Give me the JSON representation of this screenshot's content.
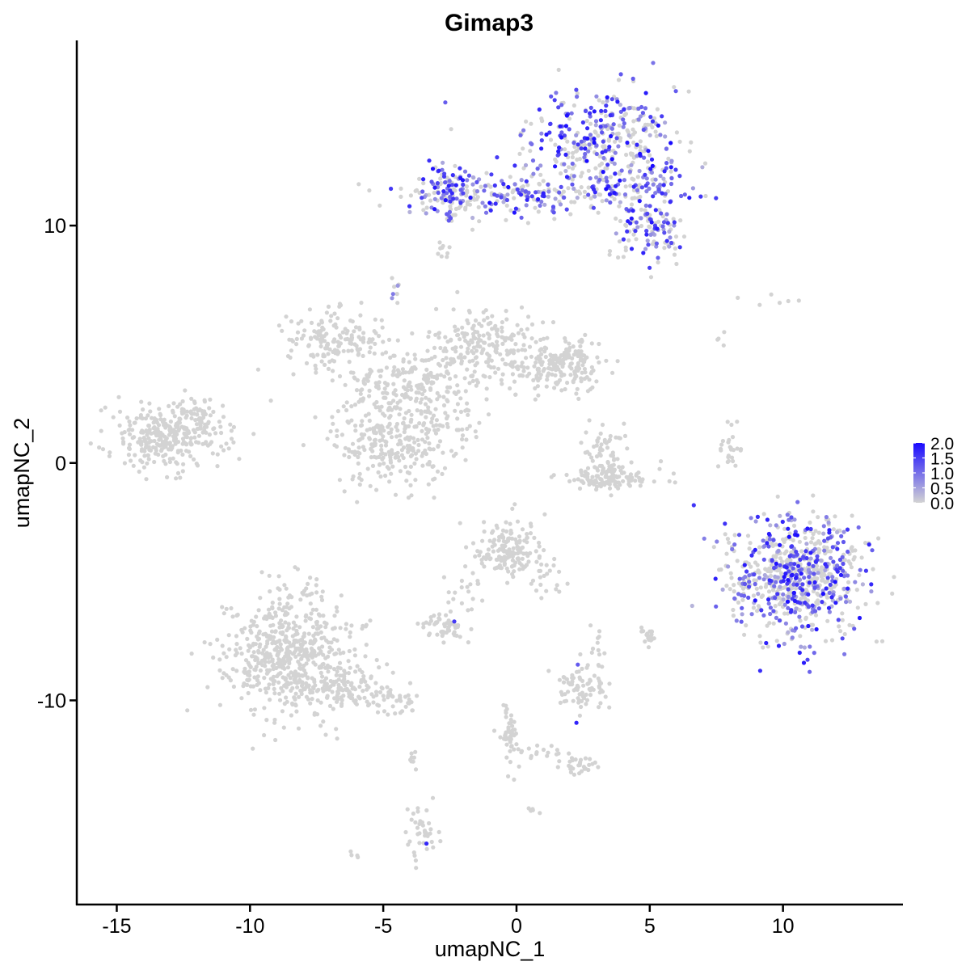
{
  "chart_data": {
    "type": "scatter",
    "title": "Gimap3",
    "xlabel": "umapNC_1",
    "ylabel": "umapNC_2",
    "xlim": [
      -16.5,
      14.5
    ],
    "ylim": [
      -18.6,
      17.8
    ],
    "x_ticks": [
      -15,
      -10,
      -5,
      0,
      5,
      10
    ],
    "y_ticks": [
      -10,
      0,
      10
    ],
    "x_tick_labels": [
      "-15",
      "-10",
      "-5",
      "0",
      "5",
      "10"
    ],
    "y_tick_labels": [
      "-10",
      "0",
      "10"
    ],
    "grid": false,
    "color_scale": {
      "low_color": "#d3d3d3",
      "high_color": "#1a0bff",
      "min": 0.0,
      "max": 2.0,
      "ticks": [
        2.0,
        1.5,
        1.0,
        0.5,
        0.0
      ],
      "tick_labels": [
        "2.0",
        "1.5",
        "1.0",
        "0.5",
        "0.0"
      ],
      "legend_position": "right"
    },
    "clusters": [
      {
        "cx": 3.2,
        "cy": 13.5,
        "sx": 1.4,
        "sy": 1.2,
        "n": 380,
        "expr": 0.55
      },
      {
        "cx": 0.5,
        "cy": 11.3,
        "sx": 2.2,
        "sy": 0.4,
        "n": 200,
        "expr": 0.5
      },
      {
        "cx": -2.3,
        "cy": 11.4,
        "sx": 0.7,
        "sy": 0.6,
        "n": 120,
        "expr": 0.6
      },
      {
        "cx": 5.0,
        "cy": 9.7,
        "sx": 0.7,
        "sy": 0.7,
        "n": 110,
        "expr": 0.55
      },
      {
        "cx": 5.2,
        "cy": 11.8,
        "sx": 0.6,
        "sy": 0.5,
        "n": 60,
        "expr": 0.65
      },
      {
        "cx": -2.8,
        "cy": 8.9,
        "sx": 0.15,
        "sy": 0.2,
        "n": 10,
        "expr": 0.0
      },
      {
        "cx": -4.5,
        "cy": 7.2,
        "sx": 0.15,
        "sy": 0.3,
        "n": 8,
        "expr": 0.1
      },
      {
        "cx": -6.8,
        "cy": 5.2,
        "sx": 0.9,
        "sy": 0.6,
        "n": 160,
        "expr": 0.0
      },
      {
        "cx": -4.0,
        "cy": 3.4,
        "sx": 1.2,
        "sy": 0.8,
        "n": 200,
        "expr": 0.0
      },
      {
        "cx": -4.7,
        "cy": 1.0,
        "sx": 1.1,
        "sy": 1.0,
        "n": 280,
        "expr": 0.0
      },
      {
        "cx": -1.2,
        "cy": 5.0,
        "sx": 0.9,
        "sy": 0.8,
        "n": 200,
        "expr": 0.0
      },
      {
        "cx": 1.3,
        "cy": 4.0,
        "sx": 0.9,
        "sy": 0.5,
        "n": 140,
        "expr": 0.0
      },
      {
        "cx": 2.3,
        "cy": 4.3,
        "sx": 0.5,
        "sy": 0.6,
        "n": 70,
        "expr": 0.0
      },
      {
        "cx": -2.3,
        "cy": 1.8,
        "sx": 0.6,
        "sy": 0.5,
        "n": 30,
        "expr": 0.0
      },
      {
        "cx": -13.2,
        "cy": 1.1,
        "sx": 1.1,
        "sy": 0.7,
        "n": 300,
        "expr": 0.0
      },
      {
        "cx": -11.8,
        "cy": 1.8,
        "sx": 0.4,
        "sy": 0.5,
        "n": 40,
        "expr": 0.0
      },
      {
        "cx": 3.5,
        "cy": -0.6,
        "sx": 1.0,
        "sy": 0.3,
        "n": 120,
        "expr": 0.0
      },
      {
        "cx": 3.2,
        "cy": 0.5,
        "sx": 0.4,
        "sy": 0.6,
        "n": 50,
        "expr": 0.0
      },
      {
        "cx": 8.1,
        "cy": 0.6,
        "sx": 0.2,
        "sy": 0.5,
        "n": 25,
        "expr": 0.05
      },
      {
        "cx": 10.6,
        "cy": -4.8,
        "sx": 1.2,
        "sy": 1.3,
        "n": 700,
        "expr": 0.45
      },
      {
        "cx": 8.6,
        "cy": -4.9,
        "sx": 0.2,
        "sy": 0.5,
        "n": 20,
        "expr": 0.55
      },
      {
        "cx": -0.4,
        "cy": -3.7,
        "sx": 0.6,
        "sy": 0.6,
        "n": 160,
        "expr": 0.0
      },
      {
        "cx": 1.1,
        "cy": -4.8,
        "sx": 0.3,
        "sy": 0.5,
        "n": 20,
        "expr": 0.0
      },
      {
        "cx": -1.9,
        "cy": -5.4,
        "sx": 0.4,
        "sy": 0.7,
        "n": 20,
        "expr": 0.0
      },
      {
        "cx": -2.7,
        "cy": -6.9,
        "sx": 0.4,
        "sy": 0.3,
        "n": 50,
        "expr": 0.02
      },
      {
        "cx": -8.5,
        "cy": -8.0,
        "sx": 1.2,
        "sy": 1.3,
        "n": 600,
        "expr": 0.0
      },
      {
        "cx": -6.4,
        "cy": -9.5,
        "sx": 0.8,
        "sy": 0.5,
        "n": 100,
        "expr": 0.0
      },
      {
        "cx": -4.6,
        "cy": -10.0,
        "sx": 0.5,
        "sy": 0.3,
        "n": 40,
        "expr": 0.0
      },
      {
        "cx": 2.4,
        "cy": -9.4,
        "sx": 0.5,
        "sy": 0.6,
        "n": 80,
        "expr": 0.02
      },
      {
        "cx": 3.1,
        "cy": -7.6,
        "sx": 0.2,
        "sy": 0.4,
        "n": 10,
        "expr": 0.0
      },
      {
        "cx": 5.0,
        "cy": -7.2,
        "sx": 0.2,
        "sy": 0.2,
        "n": 20,
        "expr": 0.0
      },
      {
        "cx": -0.3,
        "cy": -11.3,
        "sx": 0.2,
        "sy": 0.7,
        "n": 50,
        "expr": 0.0
      },
      {
        "cx": 2.3,
        "cy": -12.7,
        "sx": 0.3,
        "sy": 0.2,
        "n": 30,
        "expr": 0.0
      },
      {
        "cx": 0.9,
        "cy": -12.1,
        "sx": 0.5,
        "sy": 0.2,
        "n": 15,
        "expr": 0.0
      },
      {
        "cx": -3.5,
        "cy": -15.6,
        "sx": 0.3,
        "sy": 0.6,
        "n": 40,
        "expr": 0.02
      },
      {
        "cx": -3.9,
        "cy": -12.4,
        "sx": 0.1,
        "sy": 0.3,
        "n": 8,
        "expr": 0.0
      },
      {
        "cx": 0.7,
        "cy": -14.6,
        "sx": 0.1,
        "sy": 0.1,
        "n": 5,
        "expr": 0.0
      },
      {
        "cx": -6.0,
        "cy": -16.5,
        "sx": 0.1,
        "sy": 0.1,
        "n": 4,
        "expr": 0.0
      },
      {
        "cx": 9.2,
        "cy": 6.8,
        "sx": 0.6,
        "sy": 0.2,
        "n": 6,
        "expr": 0.0
      },
      {
        "cx": 7.6,
        "cy": 4.9,
        "sx": 0.2,
        "sy": 0.3,
        "n": 4,
        "expr": 0.0
      }
    ]
  }
}
